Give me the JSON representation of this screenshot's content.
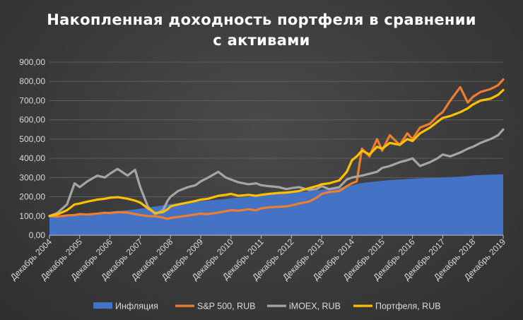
{
  "chart_data": {
    "type": "line",
    "title_line1": "Накопленная доходность портфеля в сравнении",
    "title_line2": "с активами",
    "ylim": [
      0,
      900
    ],
    "y_ticks": [
      "0,00",
      "100,00",
      "200,00",
      "300,00",
      "400,00",
      "500,00",
      "600,00",
      "700,00",
      "800,00",
      "900,00"
    ],
    "x_ticks": [
      "Декабрь 2004",
      "Декабрь 2005",
      "Декабрь 2006",
      "Декабрь 2007",
      "Декабрь 2008",
      "Декабрь 2009",
      "Декабрь 2010",
      "Декабрь 2011",
      "Декабрь 2012",
      "Декабрь 2013",
      "Декабрь 2014",
      "Декабрь 2015",
      "Декабрь 2016",
      "Декабрь 2017",
      "Декабрь 2018",
      "Декабрь 2019"
    ],
    "x_years": [
      2004.92,
      2005.17,
      2005.5,
      2005.75,
      2005.92,
      2006.17,
      2006.5,
      2006.75,
      2006.92,
      2007.17,
      2007.5,
      2007.75,
      2007.92,
      2008.17,
      2008.42,
      2008.67,
      2008.83,
      2008.92,
      2009.17,
      2009.5,
      2009.75,
      2009.92,
      2010.17,
      2010.5,
      2010.75,
      2010.92,
      2011.17,
      2011.5,
      2011.75,
      2011.92,
      2012.17,
      2012.5,
      2012.75,
      2012.92,
      2013.17,
      2013.5,
      2013.75,
      2013.92,
      2014.17,
      2014.5,
      2014.75,
      2014.92,
      2015.08,
      2015.25,
      2015.5,
      2015.75,
      2015.92,
      2016.17,
      2016.5,
      2016.75,
      2016.92,
      2017.17,
      2017.5,
      2017.75,
      2017.92,
      2018.17,
      2018.5,
      2018.75,
      2018.92,
      2019.17,
      2019.5,
      2019.75,
      2019.92
    ],
    "series": [
      {
        "name": "Инфляция",
        "color": "#4472c4",
        "kind": "area",
        "values": [
          100,
          103,
          106,
          108,
          111,
          114,
          117,
          120,
          123,
          126,
          130,
          134,
          138,
          143,
          149,
          155,
          160,
          162,
          166,
          170,
          174,
          177,
          181,
          185,
          189,
          193,
          196,
          200,
          204,
          207,
          211,
          215,
          219,
          222,
          226,
          229,
          232,
          236,
          241,
          247,
          253,
          259,
          266,
          272,
          276,
          280,
          283,
          287,
          290,
          292,
          294,
          296,
          298,
          299,
          300,
          302,
          305,
          308,
          311,
          313,
          315,
          316,
          317
        ]
      },
      {
        "name": "S&P 500, RUB",
        "color": "#ed7d31",
        "kind": "line",
        "values": [
          100,
          97,
          103,
          105,
          110,
          108,
          112,
          117,
          115,
          120,
          118,
          110,
          105,
          100,
          98,
          92,
          85,
          90,
          95,
          102,
          108,
          112,
          110,
          118,
          125,
          130,
          128,
          135,
          130,
          140,
          145,
          148,
          150,
          155,
          165,
          175,
          195,
          215,
          225,
          230,
          255,
          270,
          280,
          450,
          410,
          500,
          440,
          520,
          470,
          530,
          500,
          560,
          580,
          620,
          640,
          700,
          770,
          690,
          720,
          745,
          760,
          780,
          810
        ]
      },
      {
        "name": "iMOEX, RUB",
        "color": "#a5a5a5",
        "kind": "line",
        "values": [
          100,
          115,
          160,
          270,
          250,
          280,
          310,
          300,
          320,
          345,
          310,
          340,
          250,
          150,
          110,
          130,
          180,
          200,
          230,
          250,
          260,
          280,
          300,
          330,
          300,
          290,
          275,
          265,
          270,
          260,
          255,
          250,
          240,
          245,
          250,
          235,
          240,
          255,
          240,
          250,
          290,
          300,
          305,
          310,
          320,
          330,
          350,
          360,
          380,
          390,
          400,
          360,
          380,
          400,
          420,
          410,
          430,
          450,
          460,
          480,
          500,
          520,
          550
        ]
      },
      {
        "name": "Портфеля, RUB",
        "color": "#ffc000",
        "kind": "line",
        "values": [
          100,
          108,
          130,
          160,
          165,
          175,
          185,
          190,
          195,
          198,
          190,
          180,
          170,
          140,
          115,
          120,
          135,
          150,
          160,
          170,
          178,
          185,
          190,
          205,
          210,
          215,
          205,
          210,
          205,
          210,
          215,
          220,
          222,
          225,
          230,
          245,
          255,
          265,
          270,
          285,
          330,
          390,
          410,
          440,
          420,
          460,
          450,
          480,
          470,
          500,
          490,
          530,
          560,
          590,
          610,
          620,
          640,
          660,
          680,
          700,
          710,
          730,
          755
        ]
      }
    ],
    "legend_position": "bottom",
    "grid": true
  }
}
